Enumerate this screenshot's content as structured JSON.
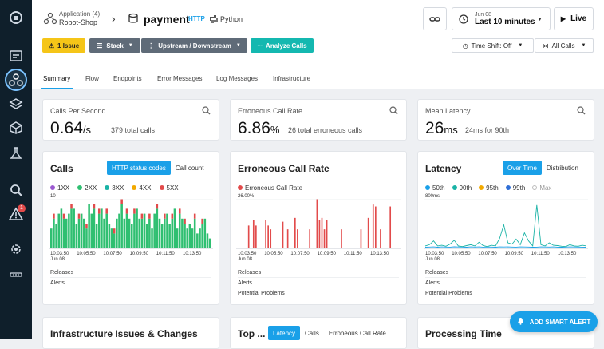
{
  "nav": {
    "icons": [
      "logo-icon",
      "dashboard-icon",
      "services-icon",
      "layers-icon",
      "cube-icon",
      "flask-icon",
      "search-icon",
      "alert-icon",
      "settings-icon",
      "more-icon"
    ],
    "alert_badge": "1"
  },
  "header": {
    "application_label": "Application (4)",
    "application_name": "Robot-Shop",
    "service_name": "payment",
    "service_protocol": "HTTP",
    "service_language": "Python",
    "time_date": "Jun 08",
    "time_range": "Last 10 minutes",
    "live_label": "Live"
  },
  "toolbar": {
    "issue_label": "1 Issue",
    "stack_label": "Stack",
    "updown_label": "Upstream / Downstream",
    "analyze_label": "Analyze Calls",
    "timeshift_label": "Time Shift: Off",
    "allcalls_label": "All Calls"
  },
  "tabs": [
    "Summary",
    "Flow",
    "Endpoints",
    "Error Messages",
    "Log Messages",
    "Infrastructure"
  ],
  "kpis": {
    "cps": {
      "title": "Calls Per Second",
      "value": "0.64",
      "unit": "/s",
      "sub": "379 total calls"
    },
    "err": {
      "title": "Erroneous Call Rate",
      "value": "6.86",
      "unit": "%",
      "sub": "26 total erroneous calls"
    },
    "lat": {
      "title": "Mean Latency",
      "value": "26",
      "unit": "ms",
      "sub": "24ms for 90th"
    }
  },
  "calls_card": {
    "title": "Calls",
    "toggle_on": "HTTP status codes",
    "toggle_off": "Call count",
    "legend": [
      "1XX",
      "2XX",
      "3XX",
      "4XX",
      "5XX"
    ],
    "ymax": "10"
  },
  "err_card": {
    "title": "Erroneous Call Rate",
    "legend": "Erroneous Call Rate",
    "ymax": "26.00%"
  },
  "lat_card": {
    "title": "Latency",
    "toggle_on": "Over Time",
    "toggle_off": "Distribution",
    "legend": [
      "50th",
      "90th",
      "95th",
      "99th",
      "Max"
    ],
    "ymax": "800ms"
  },
  "footers": {
    "releases": "Releases",
    "alerts": "Alerts",
    "problems": "Potential Problems"
  },
  "bottom": {
    "infra_title": "Infrastructure Issues & Changes",
    "top_title": "Top ...",
    "top_tab1": "Latency",
    "top_tab2": "Calls",
    "top_tab3": "Erroneous Call Rate",
    "proc_title": "Processing Time"
  },
  "smart_alert": "ADD SMART ALERT",
  "colors": {
    "accent": "#1aa0e8",
    "green": "#2fbf71",
    "red": "#e24b4b",
    "purple": "#9b59d0",
    "teal": "#1ab3a6",
    "orange": "#f2a900",
    "blue": "#2f6fd6"
  },
  "chart_data": [
    {
      "type": "bar",
      "title": "Calls",
      "x_ticks": [
        "10:03:50\nJun 08",
        "10:05:50",
        "10:07:50",
        "10:09:50",
        "10:11:50",
        "10:13:50"
      ],
      "ylim": [
        0,
        10
      ],
      "series": [
        {
          "name": "2XX",
          "values": [
            4,
            6,
            5,
            7,
            8,
            6,
            6,
            7,
            8,
            8,
            5,
            6,
            7,
            6,
            4,
            9,
            7,
            8,
            5,
            7,
            8,
            6,
            7,
            5,
            4,
            3,
            6,
            7,
            9,
            6,
            7,
            6,
            5,
            7,
            8,
            6,
            6,
            7,
            5,
            6,
            4,
            7,
            8,
            6,
            5,
            6,
            7,
            5,
            6,
            8,
            4,
            7,
            6,
            5,
            4,
            5,
            4,
            6,
            3,
            4,
            5,
            6,
            3,
            2
          ]
        },
        {
          "name": "5XX",
          "values": [
            0,
            1,
            0,
            0,
            0,
            1,
            0,
            0,
            1,
            0,
            0,
            1,
            0,
            0,
            1,
            0,
            0,
            1,
            0,
            1,
            0,
            0,
            1,
            0,
            0,
            1,
            0,
            0,
            1,
            0,
            1,
            0,
            0,
            1,
            0,
            0,
            1,
            0,
            0,
            1,
            0,
            0,
            1,
            0,
            0,
            1,
            0,
            0,
            1,
            0,
            0,
            1,
            0,
            1,
            0,
            0,
            0,
            1,
            0,
            0,
            1,
            0,
            0,
            0
          ]
        }
      ]
    },
    {
      "type": "bar",
      "title": "Erroneous Call Rate",
      "x_ticks": [
        "10:03:50\nJun 08",
        "10:05:50",
        "10:07:50",
        "10:09:50",
        "10:11:50",
        "10:13:50"
      ],
      "ylim": [
        0,
        26
      ],
      "series": [
        {
          "name": "Erroneous Call Rate",
          "values": [
            0,
            0,
            0,
            0,
            12,
            0,
            15,
            12,
            0,
            0,
            0,
            15,
            12,
            10,
            0,
            0,
            0,
            0,
            14,
            0,
            10,
            0,
            0,
            16,
            10,
            0,
            0,
            0,
            0,
            10,
            0,
            0,
            26,
            15,
            16,
            10,
            15,
            0,
            0,
            0,
            0,
            0,
            10,
            0,
            0,
            0,
            0,
            0,
            0,
            0,
            10,
            0,
            0,
            16,
            0,
            23,
            22,
            0,
            10,
            0,
            0,
            0,
            22,
            0,
            0,
            0
          ]
        }
      ]
    },
    {
      "type": "line",
      "title": "Latency",
      "x_ticks": [
        "10:03:50\nJun 08",
        "10:05:50",
        "10:07:50",
        "10:09:50",
        "10:11:50",
        "10:13:50"
      ],
      "ylim": [
        0,
        800
      ],
      "series": [
        {
          "name": "50th",
          "values": [
            20,
            22,
            25,
            20,
            24,
            22,
            21,
            26,
            23,
            22,
            20,
            25,
            22,
            24,
            21,
            23,
            22,
            20,
            24,
            23,
            25,
            22,
            21,
            24,
            23,
            22,
            20,
            21,
            24,
            23,
            22,
            25,
            21,
            20,
            22,
            24,
            23,
            22,
            21,
            20
          ]
        },
        {
          "name": "90th",
          "values": [
            40,
            60,
            120,
            40,
            50,
            35,
            70,
            130,
            40,
            30,
            45,
            60,
            40,
            100,
            45,
            30,
            50,
            40,
            160,
            380,
            90,
            70,
            150,
            60,
            250,
            120,
            40,
            700,
            60,
            40,
            90,
            50,
            45,
            35,
            30,
            60,
            40,
            35,
            50,
            40
          ]
        }
      ]
    }
  ]
}
